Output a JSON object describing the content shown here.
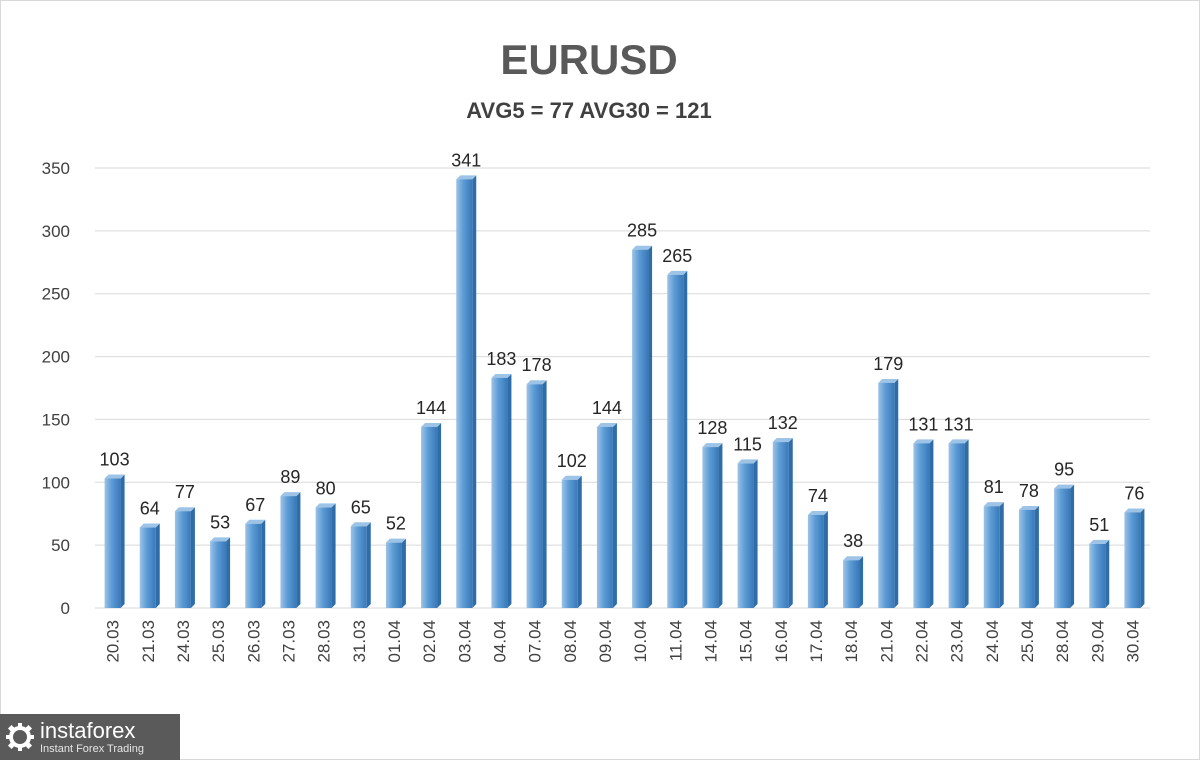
{
  "chart_data": {
    "type": "bar",
    "title": "EURUSD",
    "subtitle": "AVG5 = 77 AVG30 = 121",
    "categories": [
      "20.03",
      "21.03",
      "24.03",
      "25.03",
      "26.03",
      "27.03",
      "28.03",
      "31.03",
      "01.04",
      "02.04",
      "03.04",
      "04.04",
      "07.04",
      "08.04",
      "09.04",
      "10.04",
      "11.04",
      "14.04",
      "15.04",
      "16.04",
      "17.04",
      "18.04",
      "21.04",
      "22.04",
      "23.04",
      "24.04",
      "25.04",
      "28.04",
      "29.04",
      "30.04"
    ],
    "values": [
      103,
      64,
      77,
      53,
      67,
      89,
      80,
      65,
      52,
      144,
      341,
      183,
      178,
      102,
      144,
      285,
      265,
      128,
      115,
      132,
      74,
      38,
      179,
      131,
      131,
      81,
      78,
      95,
      51,
      76
    ],
    "ylim": [
      0,
      350
    ],
    "yticks": [
      0,
      50,
      100,
      150,
      200,
      250,
      300,
      350
    ],
    "grid": true,
    "legend": "none",
    "colors": {
      "bar": "#5b9bd5",
      "bar_dark": "#2e6da8",
      "bar_light": "#9dc3e6",
      "grid": "#d9d9d9"
    }
  },
  "watermark": {
    "name": "instaforex",
    "tagline": "Instant Forex Trading"
  }
}
